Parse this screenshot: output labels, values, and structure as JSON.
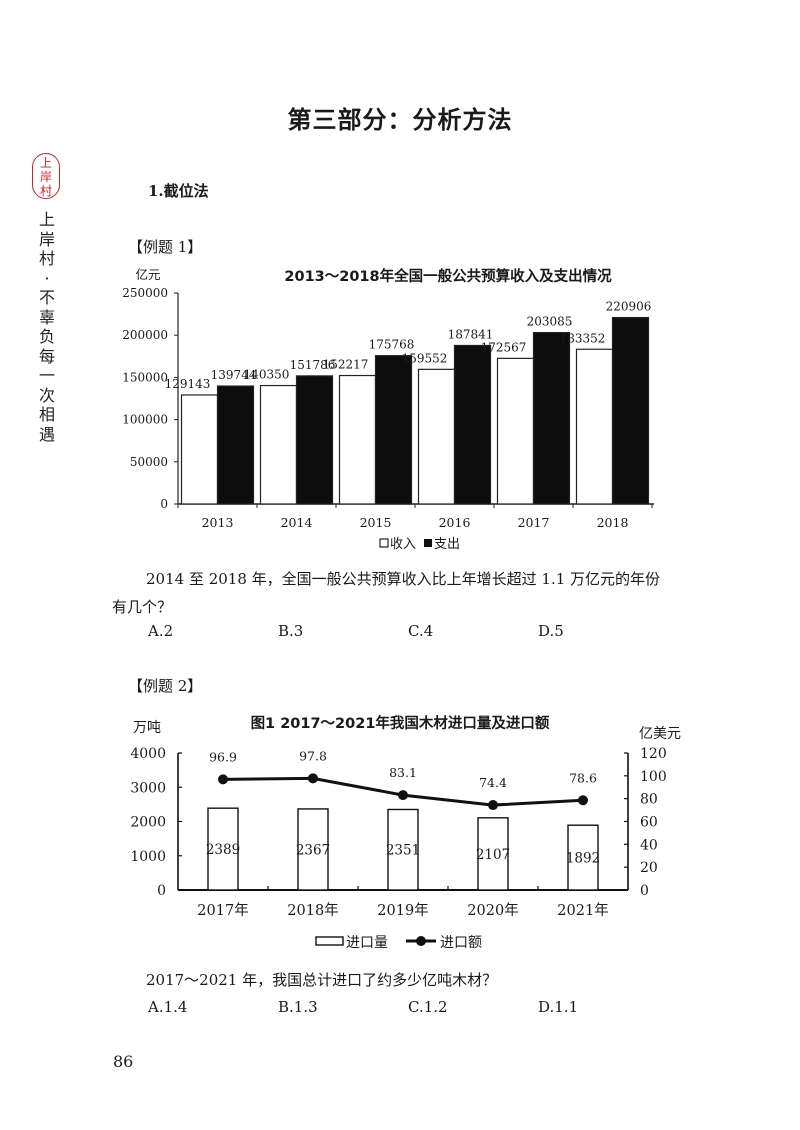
{
  "sidebar": {
    "seal_chars": [
      "上",
      "岸",
      "村"
    ],
    "slogan_chars": [
      "上",
      "岸",
      "村",
      "·",
      "不",
      "辜",
      "负",
      "每",
      "一",
      "次",
      "相",
      "遇"
    ],
    "seal_color": "#c0262d"
  },
  "page_title": "第三部分：分析方法",
  "section_heading": "1.截位法",
  "example1": {
    "label": "【例题 1】",
    "question_line1": "2014 至 2018 年，全国一般公共预算收入比上年增长超过 1.1 万亿元的年份",
    "question_line2": "有几个？",
    "options": [
      "A.2",
      "B.3",
      "C.4",
      "D.5"
    ]
  },
  "example2": {
    "label": "【例题 2】",
    "question": "2017～2021 年，我国总计进口了约多少亿吨木材？",
    "options": [
      "A.1.4",
      "B.1.3",
      "C.1.2",
      "D.1.1"
    ]
  },
  "page_number": "86",
  "chart_data": [
    {
      "type": "bar",
      "title": "2013～2018年全国一般公共预算收入及支出情况",
      "ylabel": "亿元",
      "xlabel": "",
      "categories": [
        "2013",
        "2014",
        "2015",
        "2016",
        "2017",
        "2018"
      ],
      "series": [
        {
          "name": "收入",
          "fill": "#ffffff",
          "values": [
            129143,
            140350,
            152217,
            159552,
            172567,
            183352
          ]
        },
        {
          "name": "支出",
          "fill": "#0d0d0d",
          "values": [
            139744,
            151786,
            175768,
            187841,
            203085,
            220906
          ]
        }
      ],
      "yticks": [
        0,
        50000,
        100000,
        150000,
        200000,
        250000
      ],
      "ylim": [
        0,
        250000
      ],
      "grid": false,
      "legend_position": "bottom",
      "legend": [
        "收入",
        "支出"
      ]
    },
    {
      "type": "bar+line",
      "title": "图1   2017～2021年我国木材进口量及进口额",
      "categories": [
        "2017年",
        "2018年",
        "2019年",
        "2020年",
        "2021年"
      ],
      "series": [
        {
          "name": "进口量",
          "type": "bar",
          "axis": "left",
          "unit": "万吨",
          "values": [
            2389,
            2367,
            2351,
            2107,
            1892
          ]
        },
        {
          "name": "进口额",
          "type": "line",
          "axis": "right",
          "unit": "亿美元",
          "values": [
            96.9,
            97.8,
            83.1,
            74.4,
            78.6
          ]
        }
      ],
      "ylabel_left": "万吨",
      "ylabel_right": "亿美元",
      "yticks_left": [
        0,
        1000,
        2000,
        3000,
        4000
      ],
      "yticks_right": [
        0,
        20,
        40,
        60,
        80,
        100,
        120
      ],
      "ylim_left": [
        0,
        4000
      ],
      "ylim_right": [
        0,
        120
      ],
      "grid": false,
      "legend_position": "bottom",
      "legend": [
        "进口量",
        "进口额"
      ]
    }
  ]
}
